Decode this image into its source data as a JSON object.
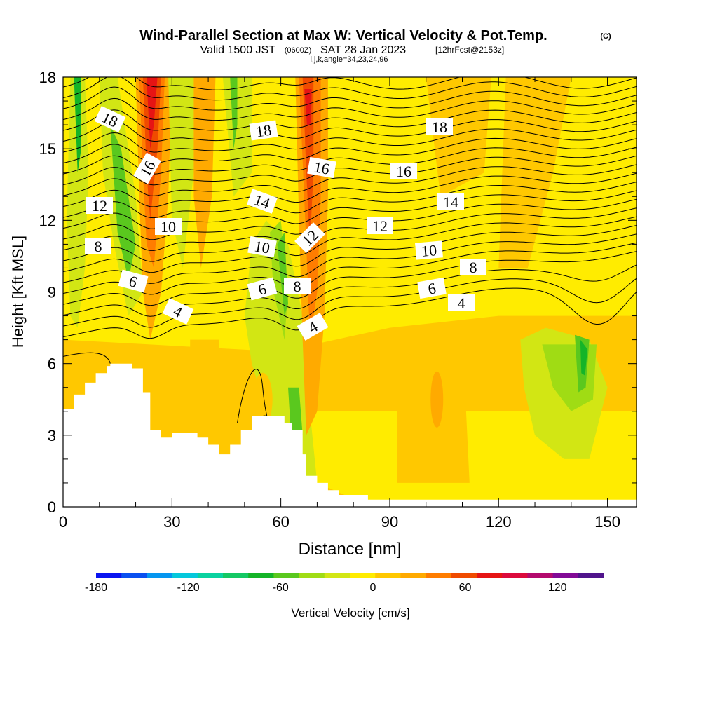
{
  "header": {
    "title": "Wind-Parallel Section at Max W: Vertical Velocity & Pot.Temp.",
    "copyright": "(C)",
    "valid_prefix": "Valid 1500 JST",
    "valid_utc": "(0600Z)",
    "valid_date": "SAT 28 Jan 2023",
    "forecast": "[12hrFcst@2153z]",
    "indices": "i,j,k,angle=34,23,24,96"
  },
  "chart_data": {
    "type": "heatmap",
    "xlabel": "Distance [nm]",
    "ylabel": "Height [Kft MSL]",
    "xlim": [
      0,
      158
    ],
    "ylim": [
      0,
      18
    ],
    "x_ticks": [
      0,
      30,
      60,
      90,
      120,
      150
    ],
    "y_ticks": [
      0,
      3,
      6,
      9,
      12,
      15,
      18
    ],
    "colorbar": {
      "label": "Vertical Velocity [cm/s]",
      "min": -180,
      "max": 135,
      "step": 15,
      "tick_values": [
        -180,
        -120,
        -60,
        0,
        60,
        120
      ],
      "colors": [
        "#0a14f0",
        "#0a50f0",
        "#0596f0",
        "#05c8dc",
        "#0ad2a0",
        "#14c864",
        "#14b428",
        "#5ac81e",
        "#a0dc14",
        "#d2e614",
        "#ffec00",
        "#ffc800",
        "#ffaa00",
        "#ff7d00",
        "#f04b00",
        "#e61414",
        "#dc0a3c",
        "#b40a6e",
        "#820a96",
        "#50148c"
      ]
    },
    "contour_labels": [
      "18",
      "16",
      "12",
      "10",
      "8",
      "6",
      "4",
      "18",
      "14",
      "10",
      "6",
      "16",
      "12",
      "8",
      "4",
      "18",
      "16",
      "14",
      "12",
      "10",
      "8",
      "6",
      "4"
    ],
    "terrain_peaks_kft": [
      {
        "x": 20,
        "height": 6.0
      },
      {
        "x": 57,
        "height": 3.8
      }
    ]
  }
}
